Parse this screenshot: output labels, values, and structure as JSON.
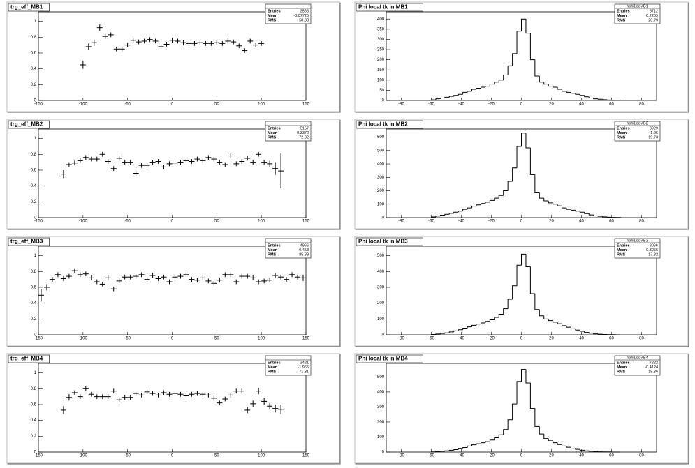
{
  "chart_data": [
    {
      "type": "errorbar",
      "title": "trg_eff_MB1",
      "xlim": [
        -150,
        150
      ],
      "ylim": [
        0,
        1.12
      ],
      "xticks": [
        -150,
        -100,
        -50,
        0,
        50,
        100,
        150
      ],
      "yticks": [
        0,
        0.2,
        0.4,
        0.6,
        0.8,
        1
      ],
      "xerr": 3.125,
      "x": [
        -100,
        -93.75,
        -87.5,
        -81.25,
        -75,
        -68.75,
        -62.5,
        -56.25,
        -50,
        -43.75,
        -37.5,
        -31.25,
        -25,
        -18.75,
        -12.5,
        -6.25,
        0,
        6.25,
        12.5,
        18.75,
        25,
        31.25,
        37.5,
        43.75,
        50,
        56.25,
        62.5,
        68.75,
        75,
        81.25,
        87.5,
        93.75,
        100
      ],
      "values": [
        0.45,
        0.68,
        0.73,
        0.92,
        0.81,
        0.83,
        0.65,
        0.65,
        0.7,
        0.76,
        0.74,
        0.75,
        0.77,
        0.75,
        0.68,
        0.71,
        0.76,
        0.75,
        0.73,
        0.72,
        0.72,
        0.73,
        0.72,
        0.72,
        0.73,
        0.72,
        0.75,
        0.74,
        0.69,
        0.63,
        0.75,
        0.7,
        0.72
      ],
      "errors": [
        0.05,
        0.04,
        0.04,
        0.04,
        0.03,
        0.03,
        0.03,
        0.03,
        0.03,
        0.03,
        0.03,
        0.03,
        0.03,
        0.03,
        0.03,
        0.03,
        0.03,
        0.03,
        0.03,
        0.03,
        0.03,
        0.03,
        0.03,
        0.03,
        0.03,
        0.03,
        0.03,
        0.03,
        0.03,
        0.03,
        0.03,
        0.03,
        0.03
      ],
      "stats": {
        "entries": 3566,
        "mean": -0.07726,
        "rms": 58.33
      },
      "stats_labels": [
        "Entries",
        "Mean",
        "RMS"
      ]
    },
    {
      "type": "histogram",
      "title": "Phi local tk in MB1",
      "xlim": [
        -90,
        90
      ],
      "ylim": [
        0,
        435
      ],
      "xticks": [
        -80,
        -60,
        -40,
        -20,
        0,
        20,
        40,
        60,
        80
      ],
      "yticks": [
        0,
        50,
        100,
        150,
        200,
        250,
        300,
        350,
        400
      ],
      "bins": [
        -60,
        -57,
        -54,
        -51,
        -48,
        -45,
        -42,
        -39,
        -36,
        -33,
        -30,
        -27,
        -24,
        -21,
        -18,
        -15,
        -12,
        -9,
        -6,
        -3,
        0,
        3,
        6,
        9,
        12,
        15,
        18,
        21,
        24,
        27,
        30,
        33,
        36,
        39,
        42,
        45,
        48,
        51,
        54,
        57,
        60,
        63,
        66
      ],
      "values": [
        3,
        8,
        12,
        16,
        20,
        25,
        30,
        40,
        45,
        55,
        60,
        65,
        70,
        80,
        90,
        100,
        125,
        170,
        230,
        340,
        400,
        330,
        200,
        120,
        90,
        80,
        70,
        65,
        55,
        45,
        40,
        35,
        30,
        25,
        18,
        12,
        8,
        6,
        4,
        2,
        1,
        1
      ],
      "stats": {
        "name": "hphiLocMB1",
        "entries": 5712,
        "mean": 0.2209,
        "rms": 20.79
      },
      "stats_labels": [
        "Entries",
        "Mean",
        "RMS"
      ]
    },
    {
      "type": "errorbar",
      "title": "trg_eff_MB2",
      "xlim": [
        -150,
        150
      ],
      "ylim": [
        0,
        1.12
      ],
      "xticks": [
        -150,
        -100,
        -50,
        0,
        50,
        100,
        150
      ],
      "yticks": [
        0,
        0.2,
        0.4,
        0.6,
        0.8,
        1
      ],
      "xerr": 3.125,
      "x": [
        -121.875,
        -115.625,
        -109.375,
        -103.125,
        -96.875,
        -90.625,
        -84.375,
        -78.125,
        -71.875,
        -65.625,
        -59.375,
        -53.125,
        -46.875,
        -40.625,
        -34.375,
        -28.125,
        -21.875,
        -15.625,
        -9.375,
        -3.125,
        3.125,
        9.375,
        15.625,
        21.875,
        28.125,
        34.375,
        40.625,
        46.875,
        53.125,
        59.375,
        65.625,
        71.875,
        78.125,
        84.375,
        90.625,
        96.875,
        103.125,
        109.375,
        115.625,
        121.875
      ],
      "values": [
        0.55,
        0.67,
        0.69,
        0.72,
        0.76,
        0.74,
        0.74,
        0.8,
        0.71,
        0.62,
        0.75,
        0.7,
        0.7,
        0.56,
        0.66,
        0.66,
        0.7,
        0.71,
        0.64,
        0.68,
        0.69,
        0.7,
        0.72,
        0.71,
        0.74,
        0.72,
        0.76,
        0.74,
        0.7,
        0.67,
        0.78,
        0.68,
        0.71,
        0.75,
        0.7,
        0.8,
        0.7,
        0.68,
        0.62,
        0.59
      ],
      "errors": [
        0.05,
        0.03,
        0.03,
        0.03,
        0.03,
        0.03,
        0.03,
        0.03,
        0.03,
        0.03,
        0.03,
        0.03,
        0.03,
        0.03,
        0.03,
        0.03,
        0.03,
        0.03,
        0.03,
        0.03,
        0.03,
        0.03,
        0.03,
        0.03,
        0.03,
        0.03,
        0.03,
        0.03,
        0.03,
        0.03,
        0.03,
        0.03,
        0.03,
        0.03,
        0.03,
        0.03,
        0.03,
        0.04,
        0.08,
        0.22
      ],
      "stats": {
        "entries": 5157,
        "mean": 0.3372,
        "rms": 72.32
      },
      "stats_labels": [
        "Entries",
        "Mean",
        "RMS"
      ]
    },
    {
      "type": "histogram",
      "title": "Phi local tk in MB2",
      "xlim": [
        -90,
        90
      ],
      "ylim": [
        0,
        660
      ],
      "xticks": [
        -80,
        -60,
        -40,
        -20,
        0,
        20,
        40,
        60,
        80
      ],
      "yticks": [
        0,
        100,
        200,
        300,
        400,
        500,
        600
      ],
      "bins": [
        -60,
        -57,
        -54,
        -51,
        -48,
        -45,
        -42,
        -39,
        -36,
        -33,
        -30,
        -27,
        -24,
        -21,
        -18,
        -15,
        -12,
        -9,
        -6,
        -3,
        0,
        3,
        6,
        9,
        12,
        15,
        18,
        21,
        24,
        27,
        30,
        33,
        36,
        39,
        42,
        45,
        48,
        51,
        54,
        57,
        60,
        63,
        66
      ],
      "values": [
        5,
        12,
        18,
        25,
        32,
        40,
        48,
        62,
        72,
        85,
        95,
        105,
        115,
        128,
        145,
        165,
        200,
        270,
        370,
        530,
        630,
        520,
        320,
        190,
        145,
        125,
        110,
        100,
        88,
        72,
        62,
        55,
        48,
        40,
        30,
        20,
        13,
        10,
        6,
        3,
        2,
        1
      ],
      "stats": {
        "name": "hphiLocMB2",
        "entries": 8929,
        "mean": -1.26,
        "rms": 19.73
      },
      "stats_labels": [
        "Entries",
        "Mean",
        "RMS"
      ]
    },
    {
      "type": "errorbar",
      "title": "trg_eff_MB3",
      "xlim": [
        -150,
        150
      ],
      "ylim": [
        0,
        1.12
      ],
      "xticks": [
        -150,
        -100,
        -50,
        0,
        50,
        100,
        150
      ],
      "yticks": [
        0,
        0.2,
        0.4,
        0.6,
        0.8,
        1
      ],
      "xerr": 3.125,
      "x": [
        -146.875,
        -140.625,
        -134.375,
        -128.125,
        -121.875,
        -115.625,
        -109.375,
        -103.125,
        -96.875,
        -90.625,
        -84.375,
        -78.125,
        -71.875,
        -65.625,
        -59.375,
        -53.125,
        -46.875,
        -40.625,
        -34.375,
        -28.125,
        -21.875,
        -15.625,
        -9.375,
        -3.125,
        3.125,
        9.375,
        15.625,
        21.875,
        28.125,
        34.375,
        40.625,
        46.875,
        53.125,
        59.375,
        65.625,
        71.875,
        78.125,
        84.375,
        90.625,
        96.875,
        103.125,
        109.375,
        115.625,
        121.875,
        128.125,
        134.375,
        140.625,
        146.875
      ],
      "values": [
        0.5,
        0.6,
        0.7,
        0.76,
        0.71,
        0.74,
        0.81,
        0.76,
        0.77,
        0.72,
        0.67,
        0.64,
        0.72,
        0.58,
        0.68,
        0.73,
        0.73,
        0.74,
        0.76,
        0.7,
        0.75,
        0.71,
        0.73,
        0.67,
        0.73,
        0.74,
        0.76,
        0.7,
        0.69,
        0.72,
        0.68,
        0.65,
        0.69,
        0.76,
        0.76,
        0.67,
        0.74,
        0.74,
        0.72,
        0.67,
        0.68,
        0.69,
        0.75,
        0.73,
        0.7,
        0.76,
        0.73,
        0.72
      ],
      "errors": [
        0.08,
        0.04,
        0.03,
        0.03,
        0.03,
        0.03,
        0.03,
        0.03,
        0.03,
        0.03,
        0.03,
        0.03,
        0.03,
        0.03,
        0.03,
        0.03,
        0.03,
        0.03,
        0.03,
        0.03,
        0.03,
        0.03,
        0.03,
        0.03,
        0.03,
        0.03,
        0.03,
        0.03,
        0.03,
        0.03,
        0.03,
        0.03,
        0.03,
        0.03,
        0.03,
        0.03,
        0.03,
        0.03,
        0.03,
        0.03,
        0.03,
        0.03,
        0.03,
        0.03,
        0.03,
        0.03,
        0.03,
        0.04
      ],
      "stats": {
        "entries": 4966,
        "mean": 0.458,
        "rms": 85.89
      },
      "stats_labels": [
        "Entries",
        "Mean",
        "RMS"
      ]
    },
    {
      "type": "histogram",
      "title": "Phi local tk in MB3",
      "xlim": [
        -90,
        90
      ],
      "ylim": [
        0,
        560
      ],
      "xticks": [
        -80,
        -60,
        -40,
        -20,
        0,
        20,
        40,
        60,
        80
      ],
      "yticks": [
        0,
        100,
        200,
        300,
        400,
        500
      ],
      "bins": [
        -60,
        -57,
        -54,
        -51,
        -48,
        -45,
        -42,
        -39,
        -36,
        -33,
        -30,
        -27,
        -24,
        -21,
        -18,
        -15,
        -12,
        -9,
        -6,
        -3,
        0,
        3,
        6,
        9,
        12,
        15,
        18,
        21,
        24,
        27,
        30,
        33,
        36,
        39,
        42,
        45,
        48,
        51,
        54,
        57,
        60,
        63,
        66
      ],
      "values": [
        2,
        5,
        8,
        12,
        18,
        25,
        32,
        42,
        50,
        60,
        68,
        75,
        85,
        95,
        110,
        130,
        165,
        225,
        310,
        440,
        510,
        430,
        260,
        160,
        120,
        100,
        90,
        80,
        70,
        58,
        48,
        38,
        30,
        22,
        15,
        10,
        6,
        4,
        2,
        1,
        1,
        0
      ],
      "stats": {
        "name": "hphiLocMB3",
        "entries": 8066,
        "mean": 0.3066,
        "rms": 17.32
      },
      "stats_labels": [
        "Entries",
        "Mean",
        "RMS"
      ]
    },
    {
      "type": "errorbar",
      "title": "trg_eff_MB4",
      "xlim": [
        -150,
        150
      ],
      "ylim": [
        0,
        1.12
      ],
      "xticks": [
        -150,
        -100,
        -50,
        0,
        50,
        100,
        150
      ],
      "yticks": [
        0,
        0.2,
        0.4,
        0.6,
        0.8,
        1
      ],
      "xerr": 3.125,
      "x": [
        -121.875,
        -115.625,
        -109.375,
        -103.125,
        -96.875,
        -90.625,
        -84.375,
        -78.125,
        -71.875,
        -65.625,
        -59.375,
        -53.125,
        -46.875,
        -40.625,
        -34.375,
        -28.125,
        -21.875,
        -15.625,
        -9.375,
        -3.125,
        3.125,
        9.375,
        15.625,
        21.875,
        28.125,
        34.375,
        40.625,
        46.875,
        53.125,
        59.375,
        65.625,
        71.875,
        78.125,
        84.375,
        90.625,
        96.875,
        103.125,
        109.375,
        115.625,
        121.875
      ],
      "values": [
        0.53,
        0.69,
        0.75,
        0.7,
        0.8,
        0.73,
        0.7,
        0.7,
        0.7,
        0.77,
        0.66,
        0.69,
        0.69,
        0.74,
        0.72,
        0.76,
        0.74,
        0.72,
        0.75,
        0.73,
        0.74,
        0.73,
        0.71,
        0.73,
        0.74,
        0.73,
        0.72,
        0.68,
        0.62,
        0.67,
        0.72,
        0.77,
        0.77,
        0.53,
        0.61,
        0.77,
        0.64,
        0.58,
        0.55,
        0.54
      ],
      "errors": [
        0.05,
        0.04,
        0.03,
        0.03,
        0.03,
        0.03,
        0.03,
        0.03,
        0.03,
        0.03,
        0.03,
        0.03,
        0.03,
        0.03,
        0.03,
        0.03,
        0.03,
        0.03,
        0.03,
        0.03,
        0.03,
        0.03,
        0.03,
        0.03,
        0.03,
        0.03,
        0.03,
        0.03,
        0.03,
        0.03,
        0.03,
        0.03,
        0.03,
        0.04,
        0.04,
        0.04,
        0.04,
        0.04,
        0.05,
        0.06
      ],
      "stats": {
        "entries": 3421,
        "mean": -1.965,
        "rms": 71.31
      },
      "stats_labels": [
        "Entries",
        "Mean",
        "RMS"
      ]
    },
    {
      "type": "histogram",
      "title": "Phi local tk in MB4",
      "xlim": [
        -90,
        90
      ],
      "ylim": [
        0,
        590
      ],
      "xticks": [
        -80,
        -60,
        -40,
        -20,
        0,
        20,
        40,
        60,
        80
      ],
      "yticks": [
        0,
        100,
        200,
        300,
        400,
        500
      ],
      "bins": [
        -60,
        -57,
        -54,
        -51,
        -48,
        -45,
        -42,
        -39,
        -36,
        -33,
        -30,
        -27,
        -24,
        -21,
        -18,
        -15,
        -12,
        -9,
        -6,
        -3,
        0,
        3,
        6,
        9,
        12,
        15,
        18,
        21,
        24,
        27,
        30,
        33,
        36,
        39,
        42,
        45,
        48,
        51,
        54,
        57,
        60,
        63,
        66
      ],
      "values": [
        1,
        3,
        5,
        8,
        12,
        16,
        22,
        30,
        40,
        48,
        55,
        62,
        70,
        80,
        95,
        115,
        150,
        215,
        320,
        470,
        550,
        460,
        290,
        170,
        120,
        90,
        75,
        62,
        50,
        40,
        32,
        25,
        18,
        12,
        8,
        5,
        3,
        2,
        1,
        1,
        0,
        0
      ],
      "stats": {
        "name": "hphiLocMB4",
        "entries": 7222,
        "mean": -0.4124,
        "rms": 15.36
      },
      "stats_labels": [
        "Entries",
        "Mean",
        "RMS"
      ]
    }
  ]
}
